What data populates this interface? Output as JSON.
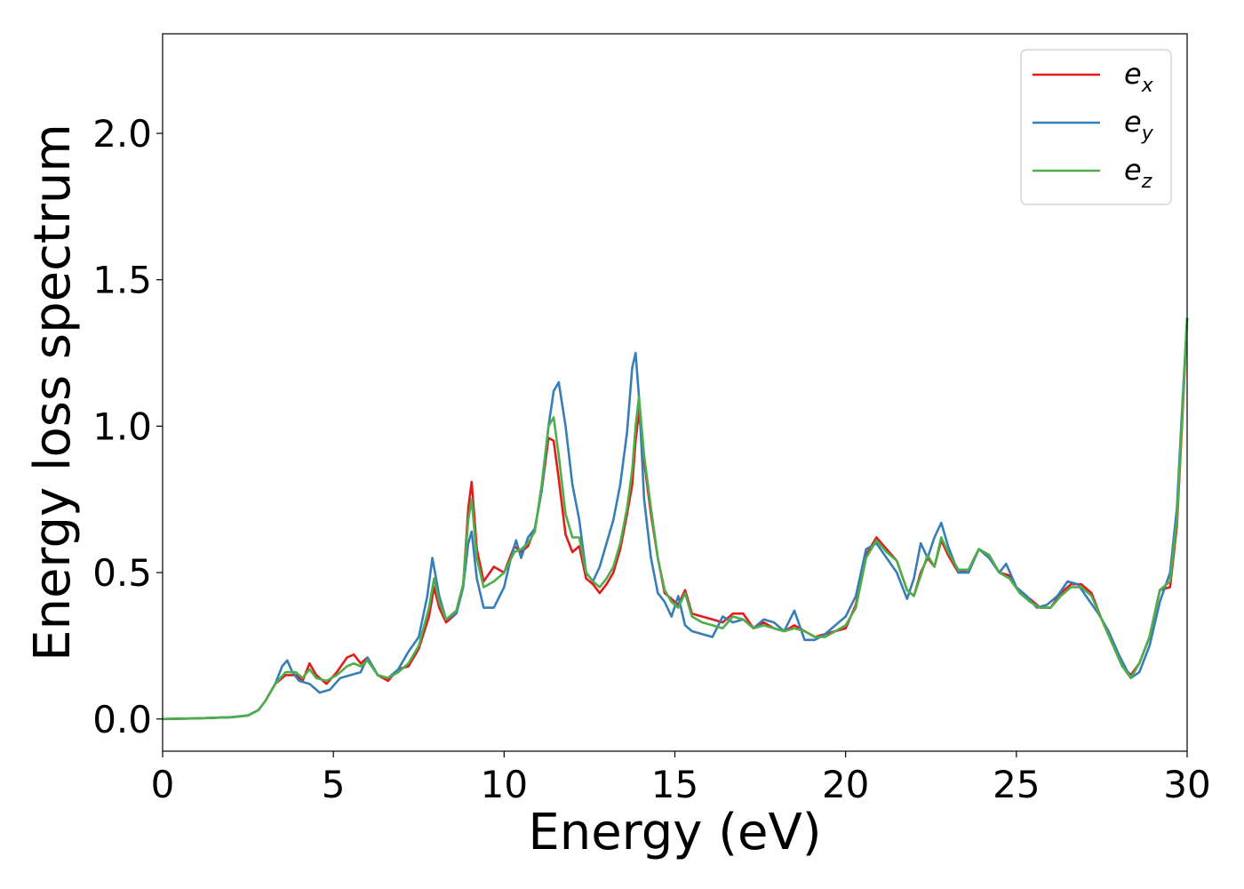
{
  "chart_data": {
    "type": "line",
    "title": "",
    "xlabel": "Energy (eV)",
    "ylabel": "Energy loss spectrum",
    "xlim": [
      0,
      30
    ],
    "ylim": [
      -0.11,
      2.34
    ],
    "xticks": [
      0,
      5,
      10,
      15,
      20,
      25,
      30
    ],
    "xtick_labels": [
      "0",
      "5",
      "10",
      "15",
      "20",
      "25",
      "30"
    ],
    "yticks": [
      0.0,
      0.5,
      1.0,
      1.5,
      2.0
    ],
    "ytick_labels": [
      "0.0",
      "0.5",
      "1.0",
      "1.5",
      "2.0"
    ],
    "grid": false,
    "legend_position": "top-right",
    "series": [
      {
        "name": "e_x",
        "label_base": "e",
        "label_sub": "x",
        "color": "#e41a1c",
        "x": [
          0,
          1,
          2,
          2.5,
          2.8,
          3.0,
          3.3,
          3.6,
          3.9,
          4.1,
          4.3,
          4.5,
          4.8,
          5.1,
          5.4,
          5.6,
          5.8,
          6.0,
          6.3,
          6.6,
          6.9,
          7.2,
          7.5,
          7.8,
          7.95,
          8.1,
          8.3,
          8.6,
          8.8,
          8.95,
          9.05,
          9.2,
          9.4,
          9.7,
          10.0,
          10.3,
          10.5,
          10.7,
          10.9,
          11.1,
          11.3,
          11.45,
          11.6,
          11.8,
          12.0,
          12.2,
          12.4,
          12.6,
          12.8,
          13.0,
          13.2,
          13.4,
          13.6,
          13.75,
          13.85,
          13.95,
          14.1,
          14.3,
          14.5,
          14.7,
          14.9,
          15.1,
          15.3,
          15.5,
          15.8,
          16.1,
          16.4,
          16.7,
          17.0,
          17.3,
          17.6,
          17.9,
          18.2,
          18.5,
          18.8,
          19.1,
          19.4,
          19.7,
          20.0,
          20.3,
          20.6,
          20.9,
          21.2,
          21.5,
          21.8,
          22.0,
          22.2,
          22.4,
          22.6,
          22.8,
          23.0,
          23.3,
          23.6,
          23.9,
          24.2,
          24.5,
          24.8,
          25.1,
          25.4,
          25.7,
          26.0,
          26.3,
          26.6,
          26.9,
          27.2,
          27.5,
          27.8,
          28.1,
          28.35,
          28.6,
          28.9,
          29.2,
          29.5,
          29.7,
          29.85,
          30.0
        ],
        "y": [
          0,
          0.002,
          0.006,
          0.012,
          0.03,
          0.06,
          0.12,
          0.15,
          0.15,
          0.13,
          0.19,
          0.15,
          0.12,
          0.16,
          0.21,
          0.22,
          0.19,
          0.21,
          0.15,
          0.13,
          0.17,
          0.18,
          0.24,
          0.35,
          0.45,
          0.38,
          0.33,
          0.36,
          0.45,
          0.72,
          0.81,
          0.58,
          0.47,
          0.52,
          0.5,
          0.59,
          0.57,
          0.59,
          0.65,
          0.78,
          0.96,
          0.95,
          0.82,
          0.63,
          0.57,
          0.59,
          0.48,
          0.46,
          0.43,
          0.46,
          0.5,
          0.58,
          0.7,
          0.8,
          0.95,
          1.05,
          0.88,
          0.7,
          0.55,
          0.43,
          0.41,
          0.39,
          0.44,
          0.36,
          0.35,
          0.34,
          0.33,
          0.36,
          0.36,
          0.31,
          0.33,
          0.31,
          0.3,
          0.32,
          0.3,
          0.28,
          0.29,
          0.3,
          0.31,
          0.39,
          0.56,
          0.62,
          0.58,
          0.54,
          0.44,
          0.42,
          0.5,
          0.55,
          0.52,
          0.61,
          0.56,
          0.5,
          0.51,
          0.58,
          0.56,
          0.5,
          0.49,
          0.43,
          0.41,
          0.38,
          0.38,
          0.43,
          0.46,
          0.46,
          0.43,
          0.34,
          0.26,
          0.18,
          0.15,
          0.19,
          0.28,
          0.44,
          0.45,
          0.66,
          1.0,
          1.37
        ]
      },
      {
        "name": "e_y",
        "label_base": "e",
        "label_sub": "y",
        "color": "#377eb8",
        "x": [
          0,
          1,
          2,
          2.5,
          2.8,
          3.0,
          3.3,
          3.5,
          3.65,
          3.8,
          4.0,
          4.3,
          4.6,
          4.9,
          5.2,
          5.5,
          5.8,
          6.0,
          6.3,
          6.6,
          6.9,
          7.2,
          7.5,
          7.75,
          7.9,
          8.1,
          8.3,
          8.6,
          8.8,
          8.95,
          9.05,
          9.2,
          9.4,
          9.7,
          10.0,
          10.2,
          10.35,
          10.5,
          10.7,
          10.9,
          11.1,
          11.3,
          11.45,
          11.6,
          11.8,
          12.0,
          12.2,
          12.4,
          12.6,
          12.8,
          13.0,
          13.2,
          13.4,
          13.6,
          13.75,
          13.85,
          13.95,
          14.1,
          14.3,
          14.5,
          14.7,
          14.9,
          15.1,
          15.3,
          15.5,
          15.8,
          16.1,
          16.4,
          16.7,
          17.0,
          17.3,
          17.6,
          17.9,
          18.2,
          18.5,
          18.8,
          19.1,
          19.4,
          19.7,
          20.0,
          20.3,
          20.6,
          20.9,
          21.2,
          21.5,
          21.8,
          22.0,
          22.2,
          22.4,
          22.6,
          22.8,
          23.0,
          23.3,
          23.6,
          23.9,
          24.2,
          24.5,
          24.7,
          25.0,
          25.3,
          25.6,
          25.9,
          26.2,
          26.5,
          26.8,
          27.1,
          27.4,
          27.7,
          28.0,
          28.35,
          28.6,
          28.9,
          29.2,
          29.5,
          29.7,
          29.85,
          30.0
        ],
        "y": [
          0,
          0.002,
          0.006,
          0.012,
          0.03,
          0.06,
          0.12,
          0.18,
          0.2,
          0.16,
          0.13,
          0.12,
          0.09,
          0.1,
          0.14,
          0.15,
          0.16,
          0.21,
          0.15,
          0.14,
          0.17,
          0.23,
          0.28,
          0.42,
          0.55,
          0.42,
          0.34,
          0.36,
          0.45,
          0.6,
          0.64,
          0.48,
          0.38,
          0.38,
          0.45,
          0.55,
          0.61,
          0.55,
          0.62,
          0.65,
          0.78,
          1.0,
          1.12,
          1.15,
          1.0,
          0.8,
          0.68,
          0.5,
          0.47,
          0.52,
          0.6,
          0.68,
          0.8,
          0.98,
          1.2,
          1.25,
          1.1,
          0.75,
          0.55,
          0.43,
          0.4,
          0.35,
          0.42,
          0.32,
          0.3,
          0.29,
          0.28,
          0.35,
          0.33,
          0.34,
          0.31,
          0.34,
          0.33,
          0.3,
          0.37,
          0.27,
          0.27,
          0.29,
          0.32,
          0.35,
          0.42,
          0.58,
          0.6,
          0.55,
          0.5,
          0.41,
          0.48,
          0.6,
          0.55,
          0.62,
          0.67,
          0.59,
          0.5,
          0.5,
          0.58,
          0.55,
          0.5,
          0.53,
          0.45,
          0.42,
          0.38,
          0.39,
          0.42,
          0.47,
          0.46,
          0.41,
          0.36,
          0.3,
          0.22,
          0.14,
          0.16,
          0.25,
          0.4,
          0.5,
          0.72,
          1.05,
          1.37
        ]
      },
      {
        "name": "e_z",
        "label_base": "e",
        "label_sub": "z",
        "color": "#4daf4a",
        "x": [
          0,
          1,
          2,
          2.5,
          2.8,
          3.0,
          3.3,
          3.6,
          3.9,
          4.1,
          4.3,
          4.5,
          4.8,
          5.1,
          5.4,
          5.6,
          5.8,
          6.0,
          6.3,
          6.6,
          6.9,
          7.2,
          7.5,
          7.8,
          7.95,
          8.1,
          8.3,
          8.6,
          8.8,
          8.95,
          9.05,
          9.2,
          9.4,
          9.7,
          10.0,
          10.3,
          10.5,
          10.7,
          10.9,
          11.1,
          11.3,
          11.45,
          11.6,
          11.8,
          12.0,
          12.2,
          12.4,
          12.6,
          12.8,
          13.0,
          13.2,
          13.4,
          13.6,
          13.75,
          13.85,
          13.95,
          14.1,
          14.3,
          14.5,
          14.7,
          14.9,
          15.1,
          15.3,
          15.5,
          15.8,
          16.1,
          16.4,
          16.7,
          17.0,
          17.3,
          17.6,
          17.9,
          18.2,
          18.5,
          18.8,
          19.1,
          19.4,
          19.7,
          20.0,
          20.3,
          20.6,
          20.9,
          21.2,
          21.5,
          21.8,
          22.0,
          22.2,
          22.4,
          22.6,
          22.8,
          23.0,
          23.3,
          23.6,
          23.9,
          24.2,
          24.5,
          24.8,
          25.1,
          25.4,
          25.7,
          26.0,
          26.3,
          26.6,
          26.9,
          27.2,
          27.5,
          27.8,
          28.1,
          28.35,
          28.6,
          28.9,
          29.2,
          29.5,
          29.7,
          29.85,
          30.0
        ],
        "y": [
          0,
          0.002,
          0.006,
          0.012,
          0.03,
          0.06,
          0.12,
          0.16,
          0.16,
          0.14,
          0.17,
          0.14,
          0.13,
          0.15,
          0.18,
          0.19,
          0.18,
          0.2,
          0.15,
          0.14,
          0.16,
          0.19,
          0.25,
          0.38,
          0.48,
          0.4,
          0.34,
          0.37,
          0.46,
          0.68,
          0.75,
          0.55,
          0.45,
          0.47,
          0.5,
          0.57,
          0.58,
          0.6,
          0.64,
          0.8,
          1.0,
          1.03,
          0.9,
          0.7,
          0.62,
          0.62,
          0.5,
          0.47,
          0.45,
          0.48,
          0.52,
          0.6,
          0.72,
          0.85,
          1.0,
          1.1,
          0.9,
          0.72,
          0.55,
          0.44,
          0.4,
          0.38,
          0.43,
          0.35,
          0.33,
          0.32,
          0.31,
          0.35,
          0.34,
          0.31,
          0.32,
          0.31,
          0.3,
          0.31,
          0.3,
          0.28,
          0.28,
          0.3,
          0.32,
          0.38,
          0.55,
          0.61,
          0.57,
          0.54,
          0.44,
          0.42,
          0.49,
          0.56,
          0.52,
          0.62,
          0.57,
          0.51,
          0.51,
          0.58,
          0.56,
          0.5,
          0.48,
          0.43,
          0.4,
          0.38,
          0.38,
          0.42,
          0.45,
          0.45,
          0.42,
          0.34,
          0.26,
          0.18,
          0.14,
          0.19,
          0.28,
          0.44,
          0.47,
          0.68,
          1.02,
          1.37
        ]
      }
    ]
  }
}
